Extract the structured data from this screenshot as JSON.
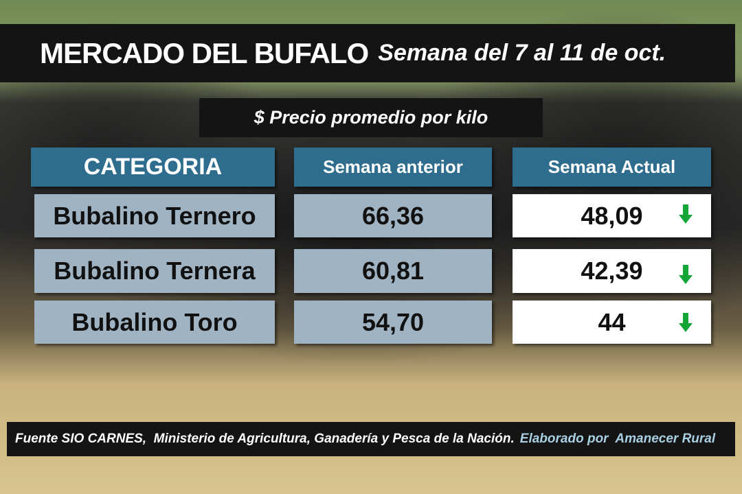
{
  "header": {
    "title": "MERCADO DEL BUFALO",
    "subtitle": "Semana del 7 al 11 de oct."
  },
  "table": {
    "caption": "$ Precio promedio por kilo",
    "columns": [
      "CATEGORIA",
      "Semana anterior",
      "Semana Actual"
    ],
    "rows": [
      [
        "Bubalino Ternero",
        "66,36",
        "48,09"
      ],
      [
        "Bubalino Ternera",
        "60,81",
        "42,39"
      ],
      [
        "Bubalino Toro",
        "54,70",
        "44"
      ]
    ]
  },
  "footer": {
    "source": "Fuente SIO CARNES,  Ministerio de Agricultura, Ganadería y Pesca de la Nación.",
    "credit": "Elaborado por  Amanecer Rural"
  }
}
